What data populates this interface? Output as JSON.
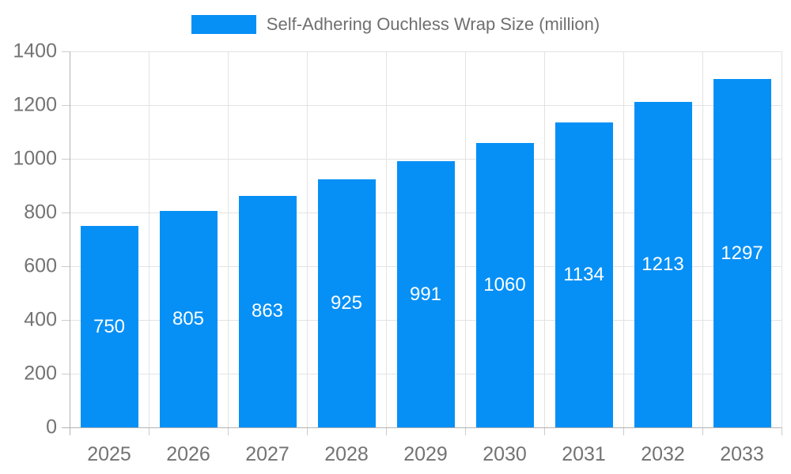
{
  "chart_data": {
    "type": "bar",
    "title": "Self-Adhering Ouchless Wrap Size (million)",
    "categories": [
      "2025",
      "2026",
      "2027",
      "2028",
      "2029",
      "2030",
      "2031",
      "2032",
      "2033"
    ],
    "values": [
      750,
      805,
      863,
      925,
      991,
      1060,
      1134,
      1213,
      1297
    ],
    "series": [
      {
        "name": "Self-Adhering Ouchless Wrap Size (million)",
        "values": [
          750,
          805,
          863,
          925,
          991,
          1060,
          1134,
          1213,
          1297
        ]
      }
    ],
    "xlabel": "",
    "ylabel": "",
    "ylim": [
      0,
      1400
    ],
    "ytick_step": 200,
    "ytick_labels": [
      "0",
      "200",
      "400",
      "600",
      "800",
      "1000",
      "1200",
      "1400"
    ],
    "grid": true,
    "legend_position": "top",
    "value_labels_shown": true,
    "colors": {
      "bar": "#0690F6",
      "value_label": "#ffffff",
      "axis_text": "#737373",
      "title_text": "#6f6f6f",
      "gridline": "#e3e3e3",
      "axis_line": "#b3b3b3",
      "tick": "#cccccc",
      "background": "#ffffff"
    }
  }
}
